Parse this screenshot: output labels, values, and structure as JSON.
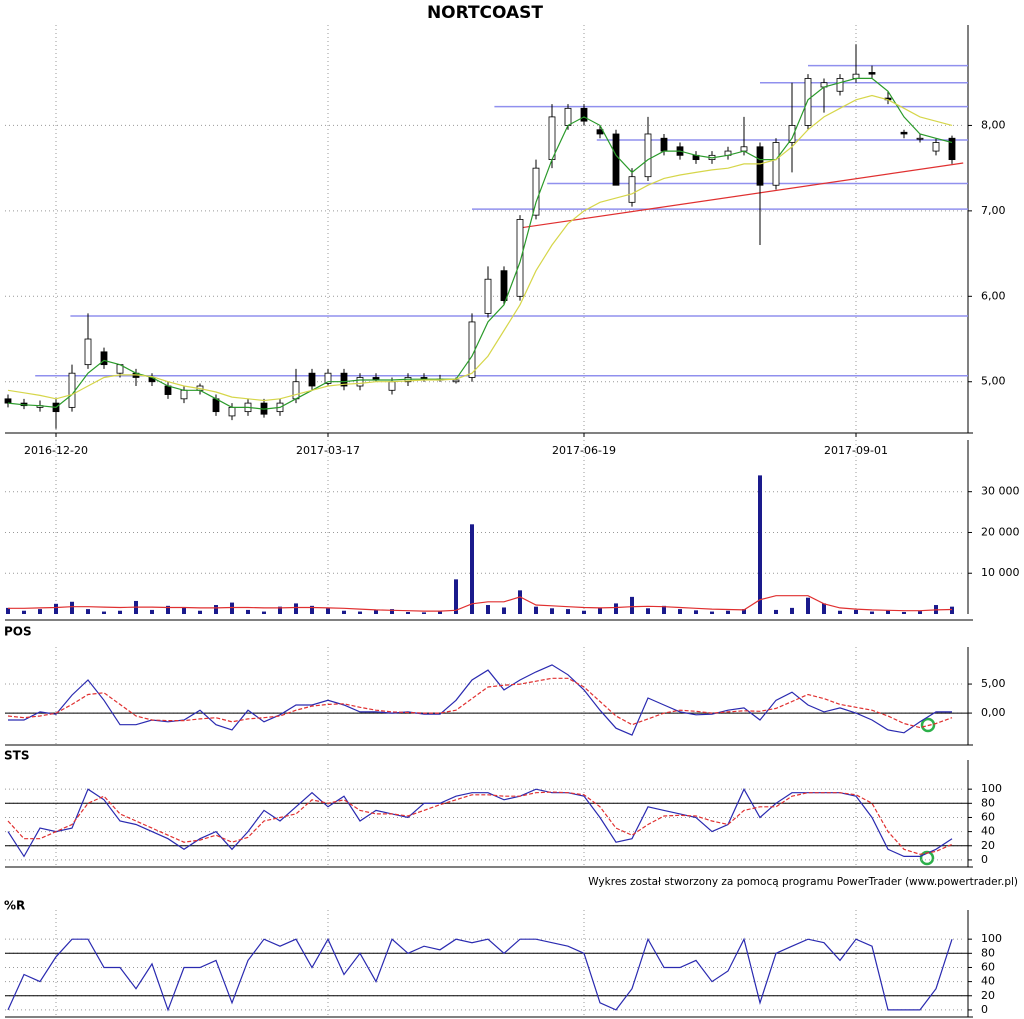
{
  "chart_data": [
    {
      "type": "candlestick",
      "title": "NORTCOAST",
      "categories": [
        null,
        null,
        null,
        "2016-12-20",
        null,
        null,
        null,
        null,
        null,
        null,
        null,
        null,
        null,
        null,
        null,
        null,
        null,
        null,
        null,
        null,
        "2017-03-17",
        null,
        null,
        null,
        null,
        null,
        null,
        null,
        null,
        null,
        null,
        null,
        null,
        null,
        null,
        null,
        "2017-06-19",
        null,
        null,
        null,
        null,
        null,
        null,
        null,
        null,
        null,
        null,
        null,
        null,
        null,
        null,
        null,
        null,
        "2017-09-01",
        null,
        null,
        null,
        null,
        null,
        null
      ],
      "open": [
        4.8,
        4.75,
        4.7,
        4.75,
        4.7,
        5.2,
        5.35,
        5.1,
        5.1,
        5.05,
        4.95,
        4.8,
        4.9,
        4.8,
        4.6,
        4.65,
        4.75,
        4.65,
        4.8,
        5.1,
        4.98,
        5.1,
        4.95,
        5.05,
        4.9,
        5.0,
        5.05,
        5.02,
        5.0,
        5.05,
        5.8,
        6.3,
        6.0,
        6.95,
        7.6,
        8.0,
        8.2,
        7.95,
        7.9,
        7.1,
        7.4,
        7.85,
        7.75,
        7.65,
        7.6,
        7.65,
        7.7,
        7.75,
        7.3,
        7.8,
        8.0,
        8.45,
        8.4,
        8.55,
        8.62,
        8.32,
        7.92,
        7.85,
        7.7,
        7.85
      ],
      "high": [
        4.85,
        4.8,
        4.78,
        4.8,
        5.2,
        5.8,
        5.4,
        5.2,
        5.15,
        5.1,
        5.0,
        4.95,
        4.98,
        4.85,
        4.75,
        4.8,
        4.8,
        4.8,
        5.15,
        5.15,
        5.15,
        5.15,
        5.1,
        5.1,
        5.05,
        5.1,
        5.1,
        5.08,
        5.05,
        5.8,
        6.35,
        6.35,
        6.95,
        7.6,
        8.25,
        8.25,
        8.25,
        8.0,
        7.95,
        7.5,
        8.1,
        7.9,
        7.8,
        7.7,
        7.7,
        7.75,
        8.1,
        7.8,
        7.85,
        8.5,
        8.6,
        8.55,
        8.6,
        8.95,
        8.7,
        8.4,
        7.95,
        7.9,
        7.85,
        7.88
      ],
      "low": [
        4.7,
        4.68,
        4.65,
        4.45,
        4.65,
        5.15,
        5.15,
        5.05,
        4.95,
        4.95,
        4.8,
        4.75,
        4.85,
        4.6,
        4.55,
        4.6,
        4.58,
        4.6,
        4.75,
        4.9,
        4.95,
        4.9,
        4.9,
        5.0,
        4.85,
        4.95,
        5.0,
        5.0,
        4.98,
        5.0,
        5.75,
        5.9,
        5.95,
        6.9,
        7.5,
        7.95,
        8.0,
        7.85,
        7.3,
        7.05,
        7.35,
        7.65,
        7.6,
        7.55,
        7.55,
        7.6,
        7.65,
        6.6,
        7.25,
        7.45,
        7.95,
        8.15,
        8.35,
        8.5,
        8.55,
        8.25,
        7.85,
        7.8,
        7.65,
        7.55
      ],
      "close": [
        4.75,
        4.72,
        4.72,
        4.65,
        5.1,
        5.5,
        5.2,
        5.2,
        5.05,
        5.0,
        4.85,
        4.9,
        4.95,
        4.65,
        4.7,
        4.75,
        4.62,
        4.75,
        5.0,
        4.95,
        5.1,
        4.95,
        5.05,
        5.02,
        5.0,
        5.05,
        5.03,
        5.03,
        5.02,
        5.7,
        6.2,
        5.95,
        6.9,
        7.5,
        8.1,
        8.2,
        8.05,
        7.9,
        7.3,
        7.4,
        7.9,
        7.7,
        7.65,
        7.6,
        7.65,
        7.7,
        7.75,
        7.3,
        7.8,
        8.0,
        8.55,
        8.5,
        8.55,
        8.6,
        8.6,
        8.3,
        7.9,
        7.85,
        7.8,
        7.6
      ],
      "series": [
        {
          "color": "#2a9a2a",
          "values": [
            4.75,
            4.73,
            4.72,
            4.7,
            4.85,
            5.1,
            5.25,
            5.2,
            5.1,
            5.05,
            4.95,
            4.9,
            4.9,
            4.8,
            4.7,
            4.7,
            4.68,
            4.7,
            4.8,
            4.9,
            5.0,
            5.0,
            5.02,
            5.02,
            5.02,
            5.03,
            5.03,
            5.03,
            5.03,
            5.3,
            5.7,
            5.9,
            6.4,
            7.1,
            7.6,
            8.0,
            8.1,
            8.0,
            7.65,
            7.45,
            7.6,
            7.7,
            7.7,
            7.65,
            7.62,
            7.65,
            7.7,
            7.6,
            7.6,
            7.85,
            8.3,
            8.45,
            8.5,
            8.55,
            8.55,
            8.4,
            8.1,
            7.9,
            7.85,
            7.8
          ]
        },
        {
          "color": "#d6d64a",
          "values": [
            4.9,
            4.87,
            4.84,
            4.8,
            4.85,
            4.95,
            5.05,
            5.08,
            5.08,
            5.06,
            5.0,
            4.95,
            4.92,
            4.88,
            4.82,
            4.8,
            4.78,
            4.8,
            4.85,
            4.9,
            4.95,
            4.97,
            4.98,
            5.0,
            5.0,
            5.01,
            5.02,
            5.02,
            5.03,
            5.1,
            5.3,
            5.6,
            5.9,
            6.3,
            6.6,
            6.85,
            7.0,
            7.1,
            7.15,
            7.2,
            7.3,
            7.38,
            7.42,
            7.45,
            7.48,
            7.5,
            7.55,
            7.55,
            7.6,
            7.75,
            7.95,
            8.1,
            8.2,
            8.3,
            8.35,
            8.3,
            8.2,
            8.1,
            8.05,
            8.0
          ]
        }
      ],
      "levels": [
        {
          "value": 5.07,
          "start": 1.7
        },
        {
          "value": 5.77,
          "start": 3.9
        },
        {
          "value": 7.02,
          "start": 29
        },
        {
          "value": 7.32,
          "start": 33.7
        },
        {
          "value": 7.83,
          "start": 36.8
        },
        {
          "value": 8.22,
          "start": 30.4
        },
        {
          "value": 8.5,
          "start": 47
        },
        {
          "value": 8.7,
          "start": 50
        }
      ],
      "level_color": "#9090ee",
      "trendline": {
        "x": [
          32,
          59.7
        ],
        "y": [
          6.8,
          7.56
        ],
        "color": "#e03030"
      },
      "ylim": [
        4.4,
        9.0
      ],
      "yticks": [
        {
          "value": 5,
          "label": "5,00"
        },
        {
          "value": 6,
          "label": "6,00"
        },
        {
          "value": 7,
          "label": "7,00"
        },
        {
          "value": 8,
          "label": "8,00"
        }
      ],
      "grid": true
    },
    {
      "type": "bar",
      "color": "#1a1a8c",
      "values": [
        1500,
        800,
        1200,
        2500,
        3000,
        1200,
        600,
        800,
        3200,
        1000,
        2000,
        1500,
        800,
        2200,
        2800,
        1000,
        600,
        1800,
        2600,
        2000,
        1400,
        800,
        600,
        1000,
        1200,
        500,
        400,
        600,
        8500,
        22000,
        2200,
        1600,
        5800,
        1800,
        1400,
        1200,
        800,
        1500,
        2600,
        4200,
        1400,
        2000,
        1200,
        900,
        600,
        800,
        1200,
        34000,
        1000,
        1500,
        4000,
        2600,
        800,
        1000,
        600,
        900,
        500,
        700,
        2200,
        1800
      ],
      "series": [
        {
          "color": "#e03030",
          "values": [
            1400,
            1400,
            1500,
            1600,
            1800,
            1800,
            1700,
            1600,
            1700,
            1700,
            1600,
            1600,
            1500,
            1500,
            1600,
            1600,
            1500,
            1500,
            1600,
            1600,
            1500,
            1400,
            1200,
            1000,
            900,
            800,
            700,
            700,
            900,
            2500,
            3000,
            3000,
            4200,
            2200,
            2000,
            1800,
            1600,
            1500,
            1600,
            1800,
            1900,
            1800,
            1600,
            1400,
            1200,
            1100,
            1000,
            3500,
            4500,
            4500,
            4500,
            2500,
            1500,
            1200,
            1000,
            900,
            800,
            800,
            1000,
            1100
          ]
        }
      ],
      "ylim": [
        0,
        39000
      ],
      "yticks": [
        {
          "value": 10000,
          "label": "10 000"
        },
        {
          "value": 20000,
          "label": "20 000"
        },
        {
          "value": 30000,
          "label": "30 000"
        }
      ],
      "grid": true
    },
    {
      "type": "line",
      "title": "POS",
      "series": [
        {
          "color": "#2a2ab0",
          "style": "solid",
          "values": [
            -1.2,
            -1.2,
            0.2,
            -0.2,
            3.1,
            5.7,
            2.2,
            -2,
            -2,
            -1.2,
            -1.5,
            -1.2,
            0.5,
            -2,
            -2.9,
            0.5,
            -1.5,
            -0.3,
            1.4,
            1.4,
            2.2,
            1.4,
            0.2,
            0.2,
            0,
            0.2,
            -0.2,
            -0.2,
            2.2,
            5.7,
            7.4,
            4.0,
            5.7,
            7.1,
            8.3,
            6.6,
            4.0,
            0.5,
            -2.6,
            -3.8,
            2.6,
            1.4,
            0.2,
            -0.3,
            -0.2,
            0.5,
            0.9,
            -1.2,
            2.2,
            3.6,
            1.4,
            0.2,
            0.9,
            0,
            -1.2,
            -2.9,
            -3.4,
            -1.5,
            0.2,
            0.2
          ]
        },
        {
          "color": "#e03030",
          "style": "dashed",
          "values": [
            -0.5,
            -0.8,
            -0.5,
            0,
            1.5,
            3.2,
            3.5,
            1.5,
            -0.5,
            -1.2,
            -1.3,
            -1.3,
            -1,
            -0.8,
            -1.5,
            -1,
            -0.8,
            -0.5,
            0.5,
            1.2,
            1.5,
            1.6,
            1,
            0.5,
            0.2,
            0.1,
            0,
            0,
            0.5,
            2.5,
            4.5,
            4.8,
            5,
            5.5,
            6,
            6,
            4.5,
            2,
            -0.5,
            -2,
            -1,
            0,
            0.5,
            0.3,
            0,
            0.2,
            0.4,
            0.3,
            0.8,
            2,
            3.2,
            2.5,
            1.5,
            1,
            0.5,
            -0.5,
            -1.8,
            -2.5,
            -1.8,
            -0.8
          ]
        }
      ],
      "levels": [
        0
      ],
      "ylim": [
        -5.5,
        8.8
      ],
      "yticks": [
        {
          "value": 0,
          "label": "0,00"
        },
        {
          "value": 5,
          "label": "5,00"
        }
      ],
      "grid": true
    },
    {
      "type": "line",
      "title": "STS",
      "credit": "Wykres został stworzony za pomocą programu PowerTrader (www.powertrader.pl)",
      "series": [
        {
          "color": "#2a2ab0",
          "style": "solid",
          "values": [
            40,
            5,
            45,
            40,
            45,
            100,
            85,
            55,
            50,
            40,
            30,
            15,
            30,
            40,
            15,
            40,
            70,
            55,
            75,
            95,
            75,
            90,
            55,
            70,
            65,
            60,
            80,
            80,
            90,
            95,
            95,
            85,
            90,
            100,
            95,
            95,
            90,
            60,
            25,
            30,
            75,
            70,
            65,
            60,
            40,
            50,
            100,
            60,
            80,
            95,
            95,
            95,
            95,
            90,
            60,
            15,
            5,
            5,
            15,
            30
          ]
        },
        {
          "color": "#e03030",
          "style": "dashed",
          "values": [
            55,
            30,
            30,
            40,
            50,
            80,
            90,
            65,
            55,
            45,
            35,
            25,
            28,
            35,
            25,
            32,
            55,
            60,
            65,
            85,
            80,
            85,
            70,
            65,
            65,
            62,
            70,
            78,
            85,
            92,
            92,
            90,
            90,
            95,
            96,
            95,
            92,
            75,
            45,
            35,
            50,
            62,
            63,
            62,
            55,
            50,
            70,
            75,
            75,
            90,
            95,
            95,
            95,
            92,
            80,
            40,
            15,
            8,
            12,
            22
          ]
        }
      ],
      "levels": [
        20,
        80
      ],
      "ylim": [
        -10,
        120
      ],
      "yticks": [
        0,
        20,
        40,
        60,
        80,
        100
      ],
      "grid": true
    },
    {
      "type": "line",
      "title": "%R",
      "series": [
        {
          "color": "#2a2ab0",
          "style": "solid",
          "values": [
            0,
            50,
            40,
            75,
            100,
            100,
            60,
            60,
            30,
            65,
            0,
            60,
            60,
            70,
            10,
            70,
            100,
            90,
            100,
            60,
            100,
            50,
            80,
            40,
            100,
            80,
            90,
            85,
            100,
            95,
            100,
            80,
            100,
            100,
            95,
            90,
            80,
            10,
            0,
            30,
            100,
            60,
            60,
            70,
            40,
            55,
            100,
            10,
            80,
            90,
            100,
            95,
            70,
            100,
            90,
            0,
            0,
            0,
            30,
            100
          ]
        }
      ],
      "levels": [
        20,
        80
      ],
      "ylim": [
        -10,
        120
      ],
      "yticks": [
        0,
        20,
        40,
        60,
        80,
        100
      ],
      "grid": true
    }
  ]
}
